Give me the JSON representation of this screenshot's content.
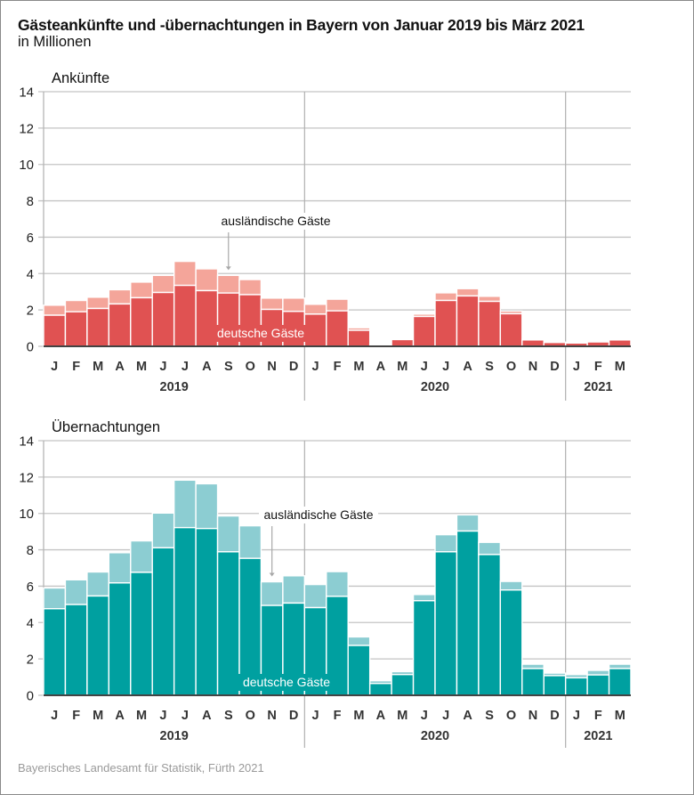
{
  "title": "Gästeankünfte und -übernachtungen in Bayern von Januar 2019 bis März 2021",
  "subtitle": "in Millionen",
  "source": "Bayerisches Landesamt für Statistik, Fürth 2021",
  "colors": {
    "arrivals_german": "#e05252",
    "arrivals_foreign": "#f4a59a",
    "nights_german": "#00a0a0",
    "nights_foreign": "#8ccdd2"
  },
  "chart_data": [
    {
      "type": "bar",
      "stacked": true,
      "title": "Ankünfte",
      "xlabel": "",
      "ylabel": "in Millionen",
      "ylim": [
        0,
        14
      ],
      "yticks": [
        0,
        2,
        4,
        6,
        8,
        10,
        12,
        14
      ],
      "grid": true,
      "categories": [
        "J",
        "F",
        "M",
        "A",
        "M",
        "J",
        "J",
        "A",
        "S",
        "O",
        "N",
        "D",
        "J",
        "F",
        "M",
        "A",
        "M",
        "J",
        "J",
        "A",
        "S",
        "O",
        "N",
        "D",
        "J",
        "F",
        "M"
      ],
      "years": [
        {
          "label": "2019",
          "start": 0,
          "count": 12
        },
        {
          "label": "2020",
          "start": 12,
          "count": 12
        },
        {
          "label": "2021",
          "start": 24,
          "count": 3
        }
      ],
      "series": [
        {
          "name": "deutsche Gäste",
          "values": [
            1.71,
            1.9,
            2.08,
            2.33,
            2.67,
            2.96,
            3.35,
            3.06,
            2.93,
            2.84,
            2.03,
            1.92,
            1.77,
            1.95,
            0.88,
            0.08,
            0.37,
            1.64,
            2.52,
            2.77,
            2.47,
            1.79,
            0.35,
            0.21,
            0.18,
            0.24,
            0.35
          ]
        },
        {
          "name": "ausländische Gäste",
          "values": [
            0.55,
            0.62,
            0.62,
            0.78,
            0.86,
            0.94,
            1.32,
            1.2,
            0.97,
            0.83,
            0.62,
            0.73,
            0.54,
            0.64,
            0.14,
            0.07,
            0.03,
            0.13,
            0.42,
            0.4,
            0.28,
            0.15,
            0.03,
            0.02,
            0.02,
            0.02,
            0.03
          ]
        }
      ],
      "annotations": [
        {
          "text": "ausländische Gäste",
          "target_index": 8
        },
        {
          "text": "deutsche Gäste"
        }
      ]
    },
    {
      "type": "bar",
      "stacked": true,
      "title": "Übernachtungen",
      "xlabel": "",
      "ylabel": "in Millionen",
      "ylim": [
        0,
        14
      ],
      "yticks": [
        0,
        2,
        4,
        6,
        8,
        10,
        12,
        14
      ],
      "grid": true,
      "categories": [
        "J",
        "F",
        "M",
        "A",
        "M",
        "J",
        "J",
        "A",
        "S",
        "O",
        "N",
        "D",
        "J",
        "F",
        "M",
        "A",
        "M",
        "J",
        "J",
        "A",
        "S",
        "O",
        "N",
        "D",
        "J",
        "F",
        "M"
      ],
      "years": [
        {
          "label": "2019",
          "start": 0,
          "count": 12
        },
        {
          "label": "2020",
          "start": 12,
          "count": 12
        },
        {
          "label": "2021",
          "start": 24,
          "count": 3
        }
      ],
      "series": [
        {
          "name": "deutsche Gäste",
          "values": [
            4.76,
            4.99,
            5.46,
            6.18,
            6.76,
            8.11,
            9.22,
            9.17,
            7.89,
            7.53,
            4.94,
            5.07,
            4.82,
            5.44,
            2.74,
            0.65,
            1.14,
            5.2,
            7.89,
            9.03,
            7.74,
            5.79,
            1.47,
            1.08,
            0.96,
            1.12,
            1.47
          ]
        },
        {
          "name": "ausländische Gäste",
          "values": [
            1.14,
            1.36,
            1.32,
            1.66,
            1.73,
            1.91,
            2.61,
            2.46,
            1.97,
            1.79,
            1.3,
            1.5,
            1.27,
            1.36,
            0.47,
            0.15,
            0.16,
            0.34,
            0.94,
            0.89,
            0.67,
            0.47,
            0.24,
            0.14,
            0.18,
            0.25,
            0.24
          ]
        }
      ],
      "annotations": [
        {
          "text": "ausländische Gäste",
          "target_index": 10
        },
        {
          "text": "deutsche Gäste"
        }
      ]
    }
  ]
}
